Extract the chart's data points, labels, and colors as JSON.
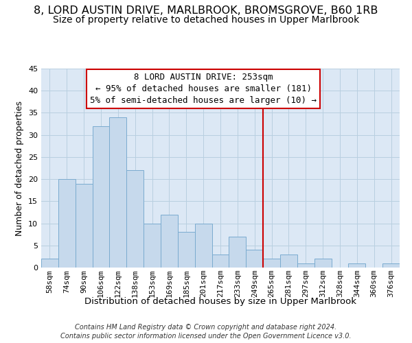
{
  "title1": "8, LORD AUSTIN DRIVE, MARLBROOK, BROMSGROVE, B60 1RB",
  "title2": "Size of property relative to detached houses in Upper Marlbrook",
  "xlabel": "Distribution of detached houses by size in Upper Marlbrook",
  "ylabel": "Number of detached properties",
  "bar_labels": [
    "58sqm",
    "74sqm",
    "90sqm",
    "106sqm",
    "122sqm",
    "138sqm",
    "153sqm",
    "169sqm",
    "185sqm",
    "201sqm",
    "217sqm",
    "233sqm",
    "249sqm",
    "265sqm",
    "281sqm",
    "297sqm",
    "312sqm",
    "328sqm",
    "344sqm",
    "360sqm",
    "376sqm"
  ],
  "bar_values": [
    2,
    20,
    19,
    32,
    34,
    22,
    10,
    12,
    8,
    10,
    3,
    7,
    4,
    2,
    3,
    1,
    2,
    0,
    1,
    0,
    1
  ],
  "bar_color": "#c6d9ec",
  "bar_edge_color": "#7aabcf",
  "highlight_line_color": "#cc0000",
  "annotation_title": "8 LORD AUSTIN DRIVE: 253sqm",
  "annotation_line1": "← 95% of detached houses are smaller (181)",
  "annotation_line2": "5% of semi-detached houses are larger (10) →",
  "annotation_box_color": "#ffffff",
  "annotation_box_edge": "#cc0000",
  "ylim": [
    0,
    45
  ],
  "footnote1": "Contains HM Land Registry data © Crown copyright and database right 2024.",
  "footnote2": "Contains public sector information licensed under the Open Government Licence v3.0.",
  "bg_color": "#ffffff",
  "plot_bg_color": "#dce8f5",
  "grid_color": "#b8cfe0",
  "title1_fontsize": 11.5,
  "title2_fontsize": 10,
  "xlabel_fontsize": 9.5,
  "ylabel_fontsize": 9,
  "tick_fontsize": 8,
  "annotation_fontsize": 9,
  "footnote_fontsize": 7
}
